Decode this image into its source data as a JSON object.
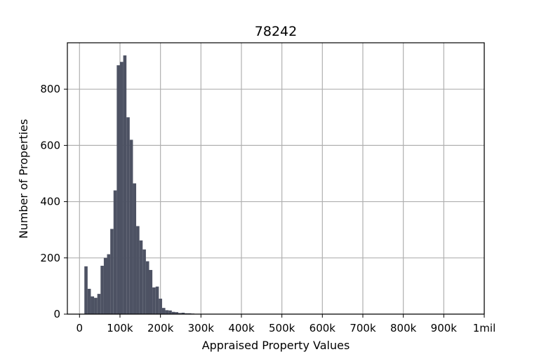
{
  "chart_data": {
    "type": "bar",
    "title": "78242",
    "xlabel": "Appraised Property Values",
    "ylabel": "Number of Properties",
    "xlim": [
      -30000,
      1000000
    ],
    "ylim": [
      0,
      965
    ],
    "grid": true,
    "bar_color": "#4d5263",
    "x_ticks": [
      {
        "value": 0,
        "label": "0"
      },
      {
        "value": 100000,
        "label": "100k"
      },
      {
        "value": 200000,
        "label": "200k"
      },
      {
        "value": 300000,
        "label": "300k"
      },
      {
        "value": 400000,
        "label": "400k"
      },
      {
        "value": 500000,
        "label": "500k"
      },
      {
        "value": 600000,
        "label": "600k"
      },
      {
        "value": 700000,
        "label": "700k"
      },
      {
        "value": 800000,
        "label": "800k"
      },
      {
        "value": 900000,
        "label": "900k"
      },
      {
        "value": 1000000,
        "label": "1mil"
      }
    ],
    "y_ticks": [
      {
        "value": 0,
        "label": "0"
      },
      {
        "value": 200,
        "label": "200"
      },
      {
        "value": 400,
        "label": "400"
      },
      {
        "value": 600,
        "label": "600"
      },
      {
        "value": 800,
        "label": "800"
      }
    ],
    "bins": [
      {
        "x0": 12000,
        "x1": 20000,
        "count": 170
      },
      {
        "x0": 20000,
        "x1": 28000,
        "count": 90
      },
      {
        "x0": 28000,
        "x1": 36000,
        "count": 63
      },
      {
        "x0": 36000,
        "x1": 44000,
        "count": 58
      },
      {
        "x0": 44000,
        "x1": 52000,
        "count": 72
      },
      {
        "x0": 52000,
        "x1": 60000,
        "count": 172
      },
      {
        "x0": 60000,
        "x1": 68000,
        "count": 200
      },
      {
        "x0": 68000,
        "x1": 76000,
        "count": 213
      },
      {
        "x0": 76000,
        "x1": 84000,
        "count": 303
      },
      {
        "x0": 84000,
        "x1": 92000,
        "count": 440
      },
      {
        "x0": 92000,
        "x1": 100000,
        "count": 885
      },
      {
        "x0": 100000,
        "x1": 108000,
        "count": 897
      },
      {
        "x0": 108000,
        "x1": 116000,
        "count": 920
      },
      {
        "x0": 116000,
        "x1": 124000,
        "count": 700
      },
      {
        "x0": 124000,
        "x1": 132000,
        "count": 620
      },
      {
        "x0": 132000,
        "x1": 140000,
        "count": 465
      },
      {
        "x0": 140000,
        "x1": 148000,
        "count": 313
      },
      {
        "x0": 148000,
        "x1": 156000,
        "count": 262
      },
      {
        "x0": 156000,
        "x1": 164000,
        "count": 230
      },
      {
        "x0": 164000,
        "x1": 172000,
        "count": 188
      },
      {
        "x0": 172000,
        "x1": 180000,
        "count": 157
      },
      {
        "x0": 180000,
        "x1": 188000,
        "count": 95
      },
      {
        "x0": 188000,
        "x1": 196000,
        "count": 98
      },
      {
        "x0": 196000,
        "x1": 204000,
        "count": 55
      },
      {
        "x0": 204000,
        "x1": 212000,
        "count": 22
      },
      {
        "x0": 212000,
        "x1": 220000,
        "count": 14
      },
      {
        "x0": 220000,
        "x1": 228000,
        "count": 13
      },
      {
        "x0": 228000,
        "x1": 236000,
        "count": 8
      },
      {
        "x0": 236000,
        "x1": 244000,
        "count": 7
      },
      {
        "x0": 244000,
        "x1": 252000,
        "count": 4
      },
      {
        "x0": 252000,
        "x1": 260000,
        "count": 5
      },
      {
        "x0": 260000,
        "x1": 268000,
        "count": 3
      },
      {
        "x0": 268000,
        "x1": 276000,
        "count": 3
      },
      {
        "x0": 276000,
        "x1": 284000,
        "count": 2
      },
      {
        "x0": 284000,
        "x1": 292000,
        "count": 1
      },
      {
        "x0": 292000,
        "x1": 300000,
        "count": 1
      }
    ]
  }
}
